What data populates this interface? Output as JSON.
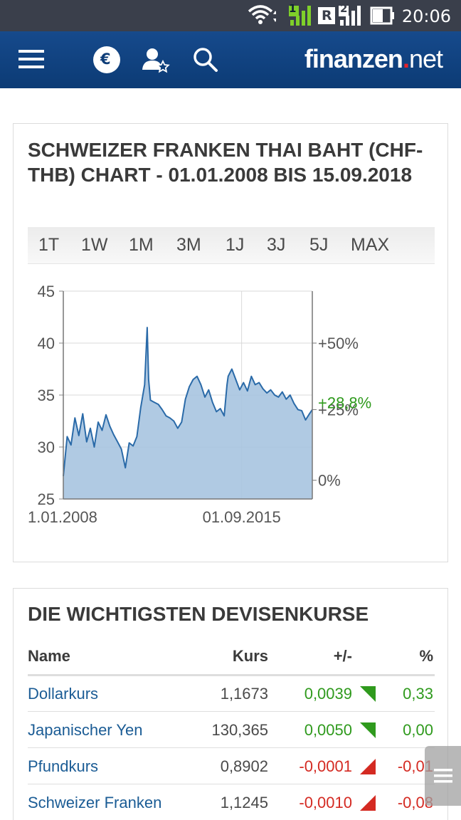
{
  "status_bar": {
    "time": "20:06",
    "sim1_label": "1",
    "sim2_label": "2",
    "roaming_label": "R",
    "icons": [
      "wifi-icon",
      "signal-icon",
      "battery-icon"
    ]
  },
  "header": {
    "brand_main": "finanzen",
    "brand_dot": ".",
    "brand_suffix": "net",
    "currency_icon_label": "€",
    "icons": [
      "menu-icon",
      "currency-icon",
      "user-watchlist-icon",
      "search-icon"
    ]
  },
  "chart_card": {
    "title": "SCHWEIZER FRANKEN THAI BAHT (CHF-THB) CHART - 01.01.2008 BIS 15.09.2018",
    "range_tabs": [
      "1T",
      "1W",
      "1M",
      "3M",
      "1J",
      "3J",
      "5J",
      "MAX"
    ]
  },
  "chart_data": {
    "type": "area",
    "title": "SCHWEIZER FRANKEN THAI BAHT (CHF-THB) CHART - 01.01.2008 BIS 15.09.2018",
    "x_tick_labels": [
      "1.01.2008",
      "01.09.2015"
    ],
    "x_range": [
      "2008-01-01",
      "2018-09-15"
    ],
    "ylim": [
      25,
      45
    ],
    "y_ticks": [
      25,
      30,
      35,
      40,
      45
    ],
    "y_tick_labels": [
      "25",
      "30",
      "35",
      "40",
      "45"
    ],
    "right_axis_labels": [
      "+50%",
      "+25%",
      "0%"
    ],
    "right_axis_ticks": [
      {
        "label": "+50%",
        "value": 40
      },
      {
        "label": "+25%",
        "value": 33.6
      },
      {
        "label": "0%",
        "value": 26.8
      }
    ],
    "last_change_label": "+28,8%",
    "last_change_value": 33.6,
    "vertical_gridline_at": "2015-09-01",
    "grid": true,
    "colors": {
      "fill": "#a7c4e0",
      "line": "#2a6aa8",
      "grid": "#d8d8d8",
      "change_label": "#2f9a1d",
      "axis_text": "#555555"
    },
    "series": [
      {
        "x": [
          "2008-01-01",
          "2008-03-01",
          "2008-05-01",
          "2008-07-01",
          "2008-09-01",
          "2008-11-01",
          "2009-01-01",
          "2009-03-01",
          "2009-05-01",
          "2009-07-01",
          "2009-09-01",
          "2009-11-01",
          "2010-01-01",
          "2010-03-01",
          "2010-05-01",
          "2010-07-01",
          "2010-09-01",
          "2010-11-01",
          "2011-01-01",
          "2011-03-01",
          "2011-05-01",
          "2011-07-01",
          "2011-08-10",
          "2011-09-01",
          "2011-10-01",
          "2011-12-01",
          "2012-02-01",
          "2012-04-01",
          "2012-06-01",
          "2012-08-01",
          "2012-10-01",
          "2012-12-01",
          "2013-02-01",
          "2013-04-01",
          "2013-06-01",
          "2013-08-01",
          "2013-10-01",
          "2013-12-01",
          "2014-02-01",
          "2014-04-01",
          "2014-06-01",
          "2014-08-01",
          "2014-10-01",
          "2014-12-01",
          "2015-01-15",
          "2015-02-01",
          "2015-04-01",
          "2015-06-01",
          "2015-08-01",
          "2015-10-01",
          "2015-12-01",
          "2016-02-01",
          "2016-04-01",
          "2016-06-01",
          "2016-08-01",
          "2016-10-01",
          "2016-12-01",
          "2017-02-01",
          "2017-04-01",
          "2017-06-01",
          "2017-08-01",
          "2017-10-01",
          "2017-12-01",
          "2018-02-01",
          "2018-04-01",
          "2018-06-01",
          "2018-08-01",
          "2018-09-15"
        ],
        "y": [
          27.2,
          31.0,
          30.2,
          32.8,
          31.1,
          33.2,
          30.5,
          31.8,
          30.0,
          32.4,
          31.6,
          33.1,
          32.0,
          31.2,
          30.5,
          29.8,
          28.0,
          30.4,
          30.1,
          31.0,
          33.8,
          36.0,
          41.5,
          36.5,
          34.5,
          34.3,
          34.1,
          33.6,
          33.0,
          32.8,
          32.5,
          31.8,
          32.4,
          34.6,
          35.8,
          36.5,
          36.8,
          36.0,
          34.8,
          35.5,
          34.3,
          33.4,
          33.7,
          33.0,
          36.0,
          36.8,
          37.5,
          36.5,
          35.5,
          36.2,
          35.4,
          36.8,
          36.0,
          36.2,
          35.6,
          35.2,
          35.5,
          35.0,
          34.8,
          35.3,
          34.6,
          35.0,
          34.2,
          33.6,
          33.5,
          32.6,
          33.2,
          33.6
        ]
      }
    ]
  },
  "fx_card": {
    "title": "DIE WICHTIGSTEN DEVISENKURSE",
    "columns": [
      "Name",
      "Kurs",
      "+/-",
      "%"
    ],
    "rows": [
      {
        "name": "Dollarkurs",
        "kurs": "1,1673",
        "change": "0,0039",
        "pct": "0,33",
        "direction": "up"
      },
      {
        "name": "Japanischer Yen",
        "kurs": "130,365",
        "change": "0,0050",
        "pct": "0,00",
        "direction": "up"
      },
      {
        "name": "Pfundkurs",
        "kurs": "0,8902",
        "change": "-0,0001",
        "pct": "-0,01",
        "direction": "down"
      },
      {
        "name": "Schweizer Franken",
        "kurs": "1,1245",
        "change": "-0,0010",
        "pct": "-0,08",
        "direction": "down"
      }
    ],
    "colors": {
      "positive": "#2f9a1d",
      "negative": "#d42a22",
      "link": "#1b5c95"
    }
  }
}
